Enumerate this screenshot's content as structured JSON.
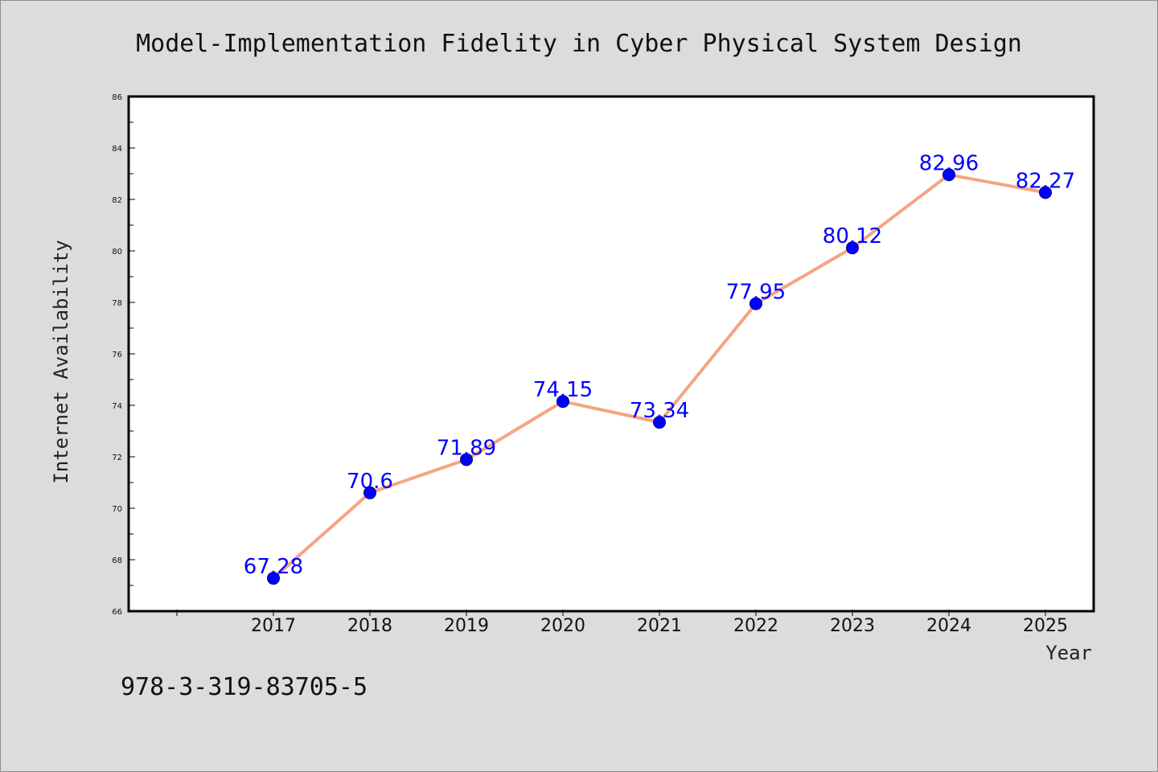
{
  "chart_data": {
    "type": "line",
    "title": "Model-Implementation Fidelity in Cyber Physical System Design",
    "xlabel": "Year",
    "ylabel": "Internet Availability",
    "categories": [
      "2017",
      "2018",
      "2019",
      "2020",
      "2021",
      "2022",
      "2023",
      "2024",
      "2025"
    ],
    "series": [
      {
        "values": [
          67.28,
          70.6,
          71.89,
          74.15,
          73.34,
          77.95,
          80.12,
          82.96,
          82.27
        ],
        "data_labels": [
          "67.28",
          "70.6",
          "71.89",
          "74.15",
          "73.34",
          "77.95",
          "80.12",
          "82.96",
          "82.27"
        ]
      }
    ],
    "ylim": [
      66,
      86
    ],
    "yticks": [
      "66",
      "68",
      "70",
      "72",
      "74",
      "76",
      "78",
      "80",
      "82",
      "84",
      "86"
    ],
    "grid": false,
    "legend": "none",
    "colors": {
      "line": "#f4a582",
      "marker": "#0000ff",
      "marker_edge": "#00008b",
      "data_label": "#0000ff",
      "plot_background": "#ffffff",
      "figure_background": "#dcdcdc"
    }
  },
  "footer": {
    "isbn": "978-3-319-83705-5"
  }
}
